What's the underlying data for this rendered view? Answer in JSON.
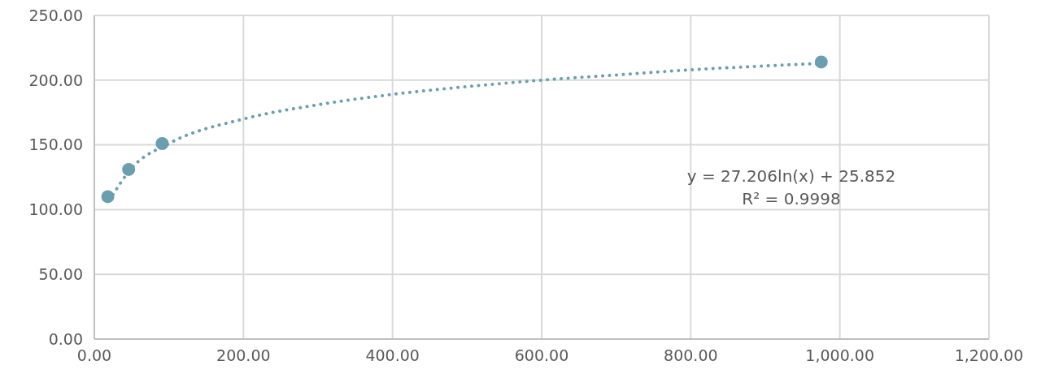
{
  "chart_data": {
    "type": "scatter",
    "marker": "circle",
    "grid": true,
    "series": [
      {
        "color": "#6a9fb0",
        "x": [
          18,
          46,
          91,
          975
        ],
        "values": [
          110,
          131,
          151,
          214
        ]
      },
      {
        "type": "line",
        "color": "#6a9fb0",
        "line_style": "dotted",
        "marker": "none",
        "x": [
          20,
          50,
          100,
          200,
          300,
          400,
          500,
          600,
          700,
          800,
          900,
          975
        ],
        "values": [
          107,
          132,
          151,
          170,
          181,
          189,
          195,
          200,
          204,
          208,
          211,
          213
        ]
      }
    ],
    "xlim": [
      0,
      1200
    ],
    "xticks": [
      {
        "value": 0,
        "label": "0.00"
      },
      {
        "value": 200,
        "label": "200.00"
      },
      {
        "value": 400,
        "label": "400.00"
      },
      {
        "value": 600,
        "label": "600.00"
      },
      {
        "value": 800,
        "label": "800.00"
      },
      {
        "value": 1000,
        "label": "1,000.00"
      },
      {
        "value": 1200,
        "label": "1,200.00"
      }
    ],
    "ylim": [
      0,
      250
    ],
    "yticks": [
      {
        "value": 0,
        "label": "0.00"
      },
      {
        "value": 50,
        "label": "50.00"
      },
      {
        "value": 100,
        "label": "100.00"
      },
      {
        "value": 150,
        "label": "150.00"
      },
      {
        "value": 200,
        "label": "200.00"
      },
      {
        "value": 250,
        "label": "250.00"
      }
    ],
    "annotations": [
      "y = 27.206ln(x) + 25.852",
      "R² = 0.9998"
    ]
  }
}
